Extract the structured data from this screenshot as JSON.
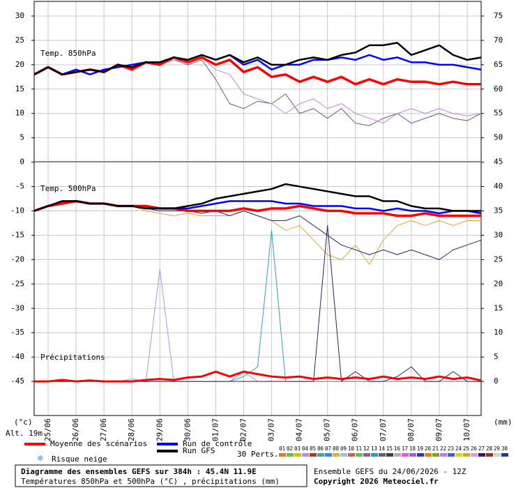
{
  "chart_data": {
    "type": "line",
    "labels": {
      "t850": "Temp. 850hPa",
      "t500": "Temp. 500hPa",
      "precip": "Précipitations",
      "y_unit": "(°c)",
      "y2_unit": "(mm)",
      "altitude": "Alt. 19m",
      "snow": "Risque neige"
    },
    "x": [
      0,
      12,
      24,
      36,
      48,
      60,
      72,
      84,
      96,
      108,
      120,
      132,
      144,
      156,
      168,
      180,
      192,
      204,
      216,
      228,
      240,
      252,
      264,
      276,
      288,
      300,
      312,
      324,
      336,
      348,
      360,
      372,
      384
    ],
    "xlim": [
      0,
      384
    ],
    "xticks": [
      {
        "value": 12,
        "label": "25/06"
      },
      {
        "value": 36,
        "label": "26/06"
      },
      {
        "value": 60,
        "label": "27/06"
      },
      {
        "value": 84,
        "label": "28/06"
      },
      {
        "value": 108,
        "label": "29/06"
      },
      {
        "value": 132,
        "label": "30/06"
      },
      {
        "value": 156,
        "label": "01/07"
      },
      {
        "value": 180,
        "label": "02/07"
      },
      {
        "value": 204,
        "label": "03/07"
      },
      {
        "value": 228,
        "label": "04/07"
      },
      {
        "value": 252,
        "label": "05/07"
      },
      {
        "value": 276,
        "label": "06/07"
      },
      {
        "value": 300,
        "label": "07/07"
      },
      {
        "value": 324,
        "label": "08/07"
      },
      {
        "value": 348,
        "label": "09/07"
      },
      {
        "value": 372,
        "label": "10/07"
      }
    ],
    "ylim": [
      -52,
      33
    ],
    "yticks": [
      -45,
      -40,
      -35,
      -30,
      -25,
      -20,
      -15,
      -10,
      -5,
      0,
      5,
      10,
      15,
      20,
      25,
      30
    ],
    "y2lim": [
      -7,
      78
    ],
    "y2ticks": [
      0,
      5,
      10,
      15,
      20,
      25,
      30,
      35,
      40,
      45,
      50,
      55,
      60,
      65,
      70,
      75
    ],
    "grid": true,
    "series": [
      {
        "name": "14",
        "color": "#606070",
        "width": 1,
        "values": [
          18,
          19.5,
          18,
          18.5,
          19,
          18.5,
          20,
          19.5,
          20.5,
          20,
          21,
          20,
          21,
          17,
          12,
          11,
          12.5,
          12,
          14,
          10,
          11,
          9,
          11,
          8,
          7.5,
          9,
          10,
          8,
          9,
          10,
          9,
          8.5,
          10
        ]
      },
      {
        "name": "22",
        "color": "#c080e0",
        "width": 1,
        "values": [
          18,
          19.5,
          18,
          18.5,
          19,
          18.5,
          20,
          19,
          20.5,
          20,
          21,
          20.5,
          21.5,
          19,
          18,
          14,
          13,
          12,
          10,
          12,
          13,
          11,
          12,
          10,
          9,
          8,
          10,
          11,
          10,
          11,
          10,
          9.5,
          10
        ]
      },
      {
        "name": "25",
        "color": "#e0a030",
        "width": 1,
        "values": [
          -10,
          -9,
          -8.5,
          -8,
          -8.5,
          -8.5,
          -9,
          -9,
          -10,
          -10.5,
          -11,
          -10.5,
          -11,
          -11,
          -11,
          -10,
          -11,
          -12,
          -14,
          -13,
          -16,
          -19,
          -20,
          -17,
          -21,
          -16,
          -13,
          -12,
          -13,
          -12,
          -13,
          -12,
          -12
        ]
      },
      {
        "name": "27",
        "color": "#302060",
        "width": 1,
        "values": [
          -10,
          -9,
          -8.5,
          -8,
          -8.5,
          -8.5,
          -9,
          -9,
          -9.5,
          -10,
          -10,
          -10,
          -10.5,
          -10,
          -11,
          -10,
          -11,
          -12,
          -12,
          -11,
          -13,
          -15,
          -17,
          -18,
          -19,
          -18,
          -19,
          -18,
          -19,
          -20,
          -18,
          -17,
          -16
        ]
      },
      {
        "name": "04",
        "color": "#b090e8",
        "width": 1,
        "axis": "y2",
        "values": [
          0,
          0,
          0,
          0,
          0,
          0,
          0,
          0.5,
          0,
          23,
          0,
          0,
          0,
          0,
          0,
          2,
          0,
          0,
          0,
          0,
          0,
          0,
          0,
          0,
          0,
          0,
          0,
          0,
          0,
          0,
          0,
          0,
          0
        ]
      },
      {
        "name": "13",
        "color": "#30a0b0",
        "width": 1,
        "axis": "y2",
        "values": [
          0,
          0,
          0,
          0,
          0,
          0,
          0,
          0,
          0,
          0,
          0,
          0,
          0,
          0,
          0,
          1,
          3,
          31,
          0,
          0,
          0,
          0,
          0,
          0,
          0,
          0,
          0,
          0,
          0,
          0,
          0,
          0,
          0
        ]
      },
      {
        "name": "27",
        "color": "#302060",
        "width": 1,
        "axis": "y2",
        "values": [
          0,
          0,
          0,
          0,
          0,
          0,
          0,
          0,
          0,
          0,
          0,
          0,
          0,
          0,
          0,
          0,
          0,
          0,
          0,
          0,
          0,
          32,
          0,
          2,
          0,
          0,
          1,
          3,
          0,
          0,
          2,
          0,
          0
        ]
      },
      {
        "name": "Moyenne des scénarios",
        "color": "#ff0000",
        "width": 3.5,
        "values": [
          18,
          19.5,
          18,
          18.5,
          19,
          18.5,
          20,
          19,
          20.5,
          20,
          21.5,
          20.5,
          21.5,
          20,
          21,
          18.5,
          19.5,
          17.5,
          18,
          16.5,
          17.5,
          16.5,
          17.5,
          16,
          17,
          16,
          17,
          16.5,
          16.5,
          16,
          16.5,
          16,
          16
        ]
      },
      {
        "name": "Moyenne des scénarios",
        "color": "#ff0000",
        "width": 3.5,
        "values": [
          -10,
          -9,
          -8.5,
          -8,
          -8.5,
          -8.5,
          -9,
          -9,
          -9,
          -9.5,
          -9.5,
          -10,
          -10,
          -10,
          -10,
          -9.5,
          -10,
          -9.5,
          -9.5,
          -9,
          -9.5,
          -10,
          -10,
          -10.5,
          -10.5,
          -10.5,
          -11,
          -11,
          -10.5,
          -11,
          -11,
          -11,
          -11
        ]
      },
      {
        "name": "Moyenne des scénarios",
        "color": "#ff0000",
        "width": 3,
        "axis": "y2",
        "values": [
          0,
          0,
          0.3,
          0,
          0.2,
          0,
          0,
          0,
          0.3,
          0.5,
          0.3,
          0.8,
          1,
          2,
          1,
          2,
          1.5,
          1,
          0.8,
          1,
          0.5,
          0.8,
          0.5,
          0.8,
          0.5,
          1,
          0.5,
          0.8,
          0.5,
          1,
          0.5,
          0.8,
          0.2
        ]
      },
      {
        "name": "Run de contrôle",
        "color": "#0000ff",
        "width": 2.5,
        "values": [
          18,
          19.5,
          18,
          19,
          18,
          19,
          19.5,
          20,
          20.5,
          20.5,
          21.5,
          21,
          22,
          21,
          22,
          20,
          21,
          19,
          20,
          20,
          21,
          21,
          21.5,
          21,
          22,
          21,
          21.5,
          20.5,
          20.5,
          20,
          20,
          19.5,
          19
        ]
      },
      {
        "name": "Run de contrôle",
        "color": "#0000ff",
        "width": 2.5,
        "values": [
          -10,
          -9,
          -8,
          -8,
          -8.5,
          -8.5,
          -9,
          -9,
          -9.5,
          -9.5,
          -9.5,
          -9.5,
          -9,
          -8.5,
          -8,
          -8,
          -8,
          -8,
          -8.5,
          -8.5,
          -9,
          -9,
          -9,
          -9.5,
          -9.5,
          -10,
          -9.5,
          -10,
          -10,
          -10.5,
          -10,
          -10,
          -10.5
        ]
      },
      {
        "name": "Run GFS",
        "color": "#000000",
        "width": 2.5,
        "values": [
          18,
          19.5,
          18,
          18.5,
          19,
          18.5,
          20,
          19.5,
          20.5,
          20.5,
          21.5,
          21,
          22,
          21,
          22,
          20.5,
          21.5,
          20,
          20,
          21,
          21.5,
          21,
          22,
          22.5,
          24,
          24,
          24.5,
          22,
          23,
          24,
          22,
          21,
          21.5
        ]
      },
      {
        "name": "Run GFS",
        "color": "#000000",
        "width": 2.5,
        "values": [
          -10,
          -9,
          -8,
          -8,
          -8.5,
          -8.5,
          -9,
          -9,
          -9.5,
          -9.5,
          -9.5,
          -9,
          -8.5,
          -7.5,
          -7,
          -6.5,
          -6,
          -5.5,
          -4.5,
          -5,
          -5.5,
          -6,
          -6.5,
          -7,
          -7,
          -8,
          -8,
          -9,
          -9.5,
          -9.5,
          -10,
          -10,
          -10
        ]
      }
    ],
    "legend": [
      "Moyenne des scénarios",
      "Run de contrôle",
      "Run GFS"
    ],
    "perturbations": {
      "title": "30 Perts.",
      "members": [
        {
          "name": "01",
          "color": "#d87b3a"
        },
        {
          "name": "02",
          "color": "#7fb050"
        },
        {
          "name": "03",
          "color": "#d0c020"
        },
        {
          "name": "04",
          "color": "#b090e8"
        },
        {
          "name": "05",
          "color": "#a04020"
        },
        {
          "name": "06",
          "color": "#50a0a0"
        },
        {
          "name": "07",
          "color": "#4080e0"
        },
        {
          "name": "08",
          "color": "#e0b040"
        },
        {
          "name": "09",
          "color": "#a0c0e0"
        },
        {
          "name": "10",
          "color": "#c06060"
        },
        {
          "name": "11",
          "color": "#60c060"
        },
        {
          "name": "12",
          "color": "#906090"
        },
        {
          "name": "13",
          "color": "#30a0b0"
        },
        {
          "name": "14",
          "color": "#606070"
        },
        {
          "name": "15",
          "color": "#404040"
        },
        {
          "name": "16",
          "color": "#b0b0b0"
        },
        {
          "name": "17",
          "color": "#e060e0"
        },
        {
          "name": "18",
          "color": "#a060e0"
        },
        {
          "name": "19",
          "color": "#2040a0"
        },
        {
          "name": "20",
          "color": "#e08020"
        },
        {
          "name": "21",
          "color": "#80a030"
        },
        {
          "name": "22",
          "color": "#c080e0"
        },
        {
          "name": "23",
          "color": "#4060c0"
        },
        {
          "name": "24",
          "color": "#d0d040"
        },
        {
          "name": "25",
          "color": "#e0a030"
        },
        {
          "name": "26",
          "color": "#e0a0c0"
        },
        {
          "name": "27",
          "color": "#302060"
        },
        {
          "name": "28",
          "color": "#903030"
        },
        {
          "name": "29",
          "color": "#d0d0d0"
        },
        {
          "name": "30",
          "color": "#204080"
        }
      ]
    },
    "footer": {
      "title": "Diagramme des ensembles GEFS sur 384h : 45.4N 11.9E",
      "subtitle": "Températures 850hPa et 500hPa (°C) , précipitations (mm)",
      "run": "Ensemble GEFS du 24/06/2026 - 12Z",
      "copyright": "Copyright 2026 Meteociel.fr"
    }
  }
}
